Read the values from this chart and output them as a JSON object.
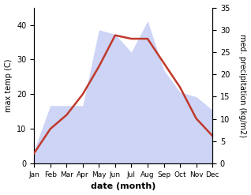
{
  "months": [
    "Jan",
    "Feb",
    "Mar",
    "Apr",
    "May",
    "Jun",
    "Jul",
    "Aug",
    "Sep",
    "Oct",
    "Nov",
    "Dec"
  ],
  "temp_max": [
    3,
    10,
    14,
    20,
    28,
    37,
    36,
    36,
    29,
    22,
    13,
    8
  ],
  "precipitation": [
    3,
    13,
    13,
    13,
    30,
    29,
    25,
    32,
    21,
    16,
    15,
    12
  ],
  "temp_color": "#c0392b",
  "precip_fill_color": "#c5cdf5",
  "precip_fill_alpha": 0.85,
  "temp_ylim": [
    0,
    45
  ],
  "precip_ylim": [
    0,
    35
  ],
  "temp_yticks": [
    0,
    10,
    20,
    30,
    40
  ],
  "precip_yticks": [
    0,
    5,
    10,
    15,
    20,
    25,
    30,
    35
  ],
  "xlabel": "date (month)",
  "ylabel_left": "max temp (C)",
  "ylabel_right": "med. precipitation (kg/m2)",
  "tick_fontsize": 7,
  "label_fontsize": 7,
  "xlabel_fontsize": 8
}
